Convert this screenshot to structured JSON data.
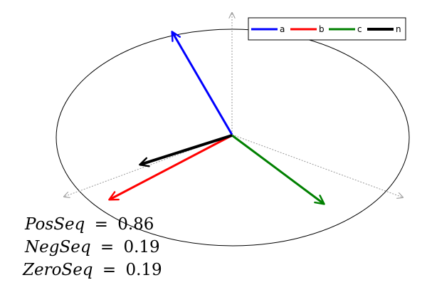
{
  "legend": {
    "items": [
      {
        "label": "a",
        "color": "#0000ff"
      },
      {
        "label": "b",
        "color": "#ff0000"
      },
      {
        "label": "c",
        "color": "#008000"
      },
      {
        "label": "n",
        "color": "#000000"
      }
    ]
  },
  "phasors": {
    "a": {
      "color": "#0000ff"
    },
    "b": {
      "color": "#ff0000"
    },
    "c": {
      "color": "#008000"
    },
    "n": {
      "color": "#000000"
    }
  },
  "sequences": {
    "pos": {
      "name": "PosSeq",
      "equals": "=",
      "value": "0.86"
    },
    "neg": {
      "name": "NegSeq",
      "equals": "=",
      "value": "0.19"
    },
    "zero": {
      "name": "ZeroSeq",
      "equals": "=",
      "value": "0.19"
    }
  }
}
